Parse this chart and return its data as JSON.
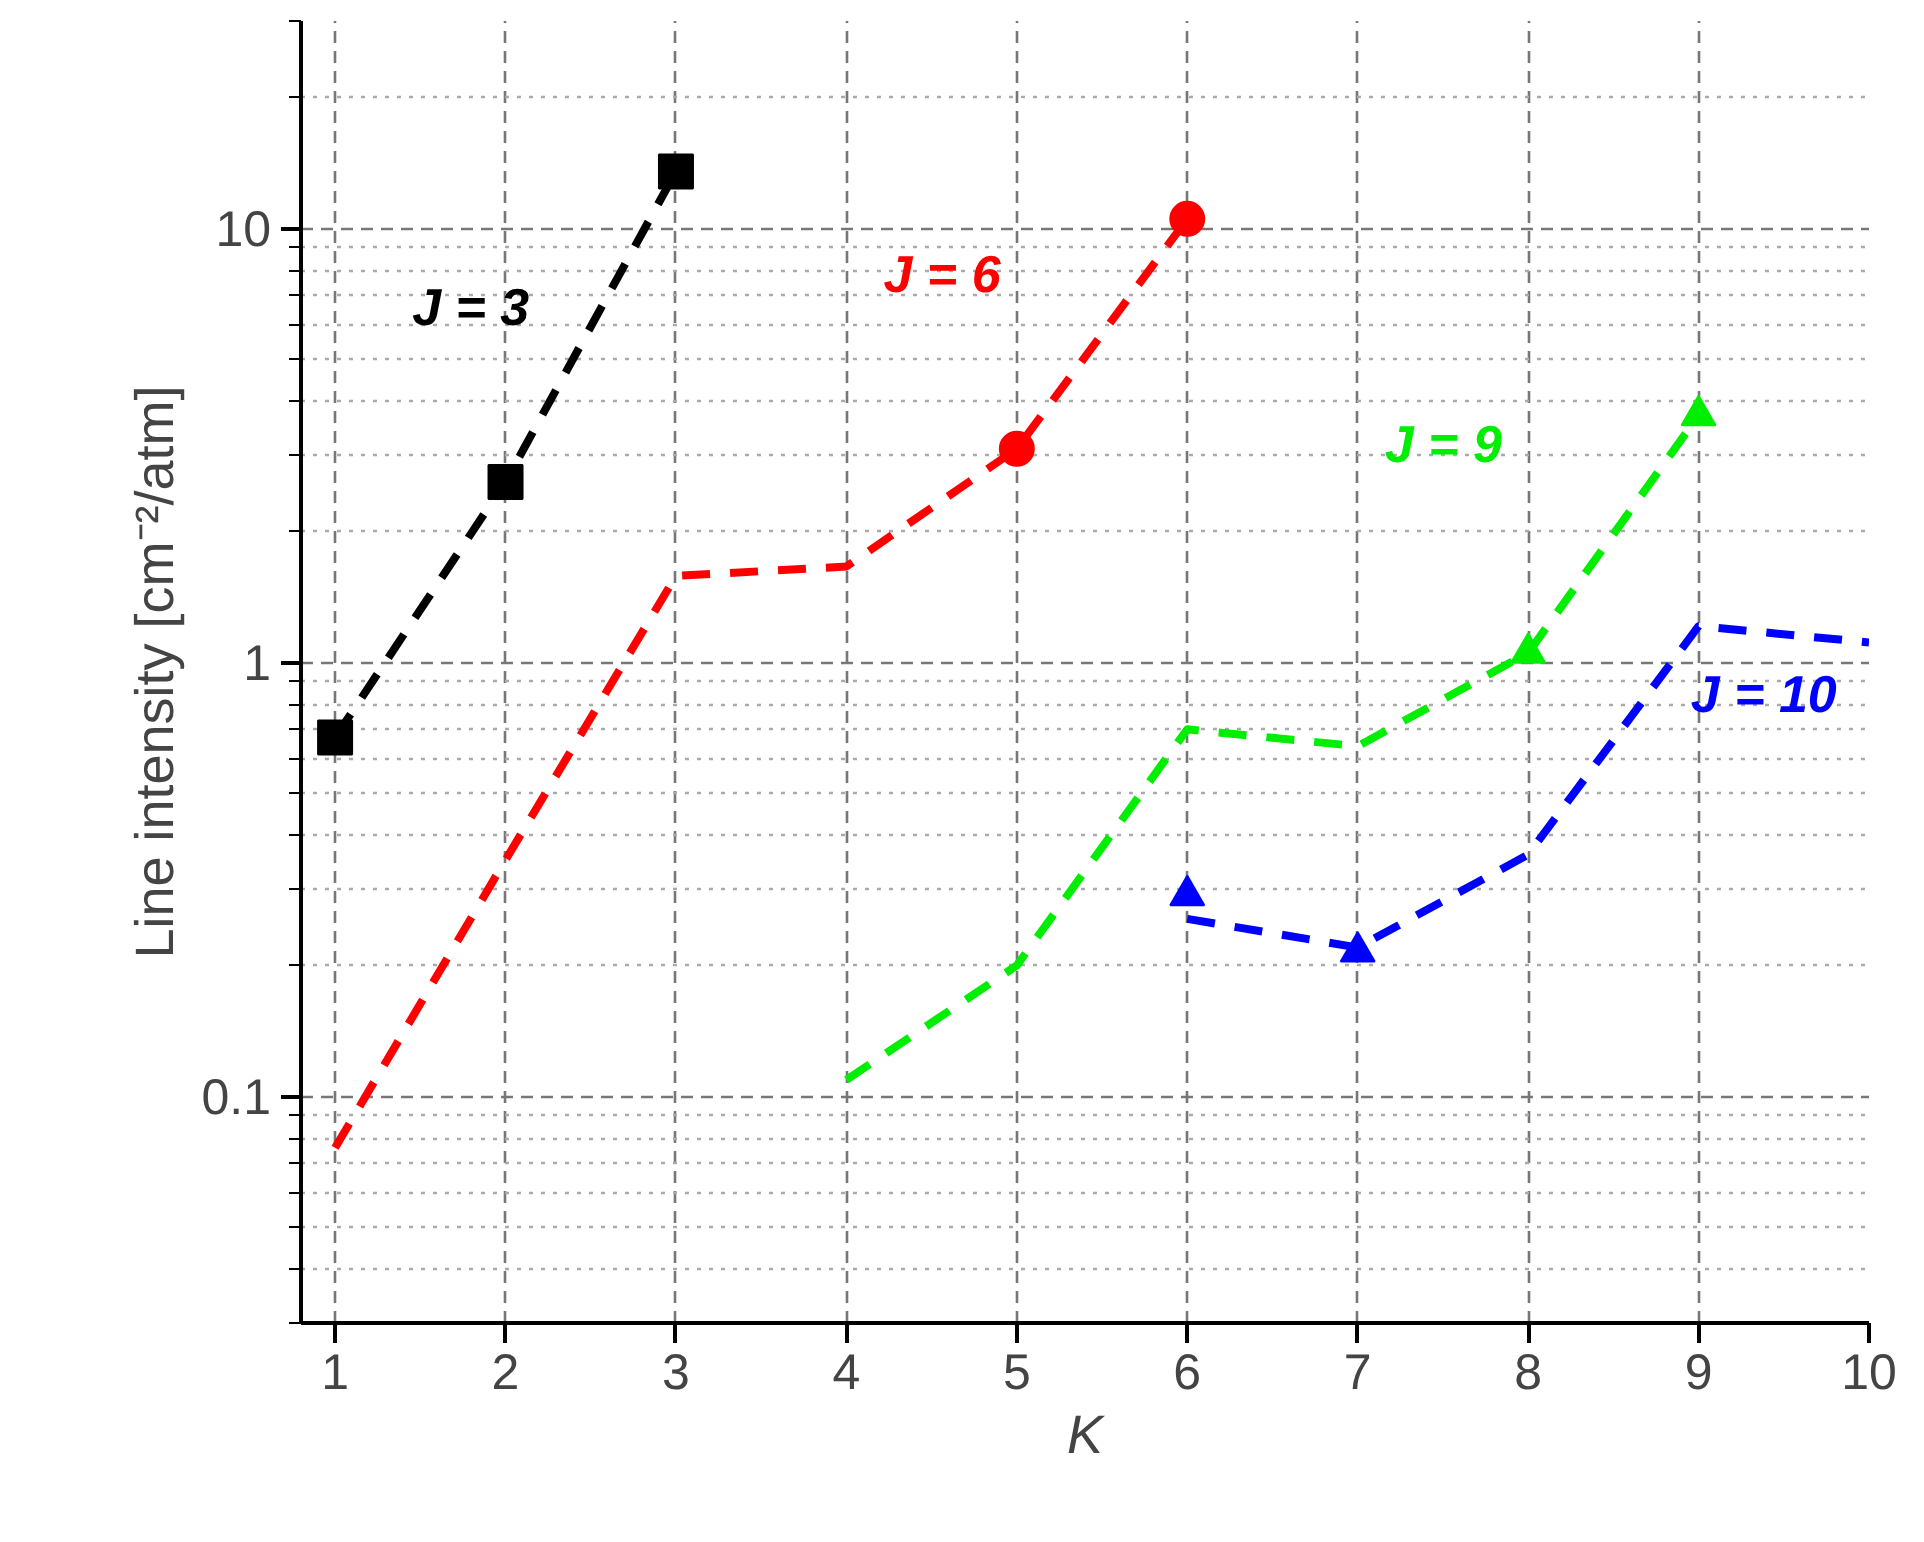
{
  "chart_data": {
    "type": "line",
    "xlabel": "K",
    "ylabel": "Line intensity [cm⁻²/atm]",
    "log": "y",
    "grid": true,
    "line_style": "dashed",
    "legend": false,
    "xlim": [
      0.8,
      10
    ],
    "xticks": [
      1,
      2,
      3,
      4,
      5,
      6,
      7,
      8,
      9,
      10
    ],
    "ylim": [
      0.03,
      30
    ],
    "yticks": [
      {
        "value": 0.03,
        "label": null
      },
      {
        "value": 0.04,
        "label": null
      },
      {
        "value": 0.05,
        "label": null
      },
      {
        "value": 0.06,
        "label": null
      },
      {
        "value": 0.07,
        "label": null
      },
      {
        "value": 0.08,
        "label": null
      },
      {
        "value": 0.09,
        "label": null
      },
      0.1,
      {
        "value": 0.2,
        "label": null
      },
      {
        "value": 0.3,
        "label": null
      },
      {
        "value": 0.4,
        "label": null
      },
      {
        "value": 0.5,
        "label": null
      },
      {
        "value": 0.6,
        "label": null
      },
      {
        "value": 0.7,
        "label": null
      },
      {
        "value": 0.8,
        "label": null
      },
      {
        "value": 0.9,
        "label": null
      },
      1,
      {
        "value": 2,
        "label": null
      },
      {
        "value": 3,
        "label": null
      },
      {
        "value": 4,
        "label": null
      },
      {
        "value": 5,
        "label": null
      },
      {
        "value": 6,
        "label": null
      },
      {
        "value": 7,
        "label": null
      },
      {
        "value": 8,
        "label": null
      },
      {
        "value": 9,
        "label": null
      },
      10,
      {
        "value": 20,
        "label": null
      },
      {
        "value": 30,
        "label": null
      }
    ],
    "series": [
      {
        "name": "J = 3",
        "color": "#000000",
        "x": [
          1,
          2,
          3
        ],
        "values": [
          0.67,
          2.6,
          13.5
        ]
      },
      {
        "name": "J = 6",
        "color": "#ff0000",
        "x": [
          1,
          2,
          3,
          4,
          5,
          6
        ],
        "values": [
          0.076,
          0.35,
          1.58,
          1.66,
          3.1,
          10.5
        ]
      },
      {
        "name": "J = 9",
        "color": "#00ee00",
        "x": [
          4,
          5,
          6,
          7,
          8,
          9
        ],
        "values": [
          0.109,
          0.2,
          0.7,
          0.64,
          1.05,
          3.7
        ]
      },
      {
        "name": "J = 10",
        "color": "#0000ff",
        "x": [
          6,
          7,
          8,
          9,
          10
        ],
        "values": [
          0.256,
          0.22,
          0.36,
          1.21,
          1.11
        ]
      },
      {
        "type": "scatter",
        "marker": "square",
        "color": "#000000",
        "x": [
          1,
          2,
          3
        ],
        "values": [
          0.67,
          2.6,
          13.5
        ]
      },
      {
        "type": "scatter",
        "marker": "circle",
        "color": "#ff0000",
        "x": [
          5,
          6
        ],
        "values": [
          3.1,
          10.5
        ]
      },
      {
        "type": "scatter",
        "marker": "triangle",
        "color": "#00ee00",
        "x": [
          8,
          9
        ],
        "values": [
          1.05,
          3.7
        ]
      },
      {
        "type": "scatter",
        "marker": "triangle",
        "color": "#0000ff",
        "x": [
          6,
          7
        ],
        "values": [
          0.29,
          0.215
        ]
      }
    ]
  }
}
